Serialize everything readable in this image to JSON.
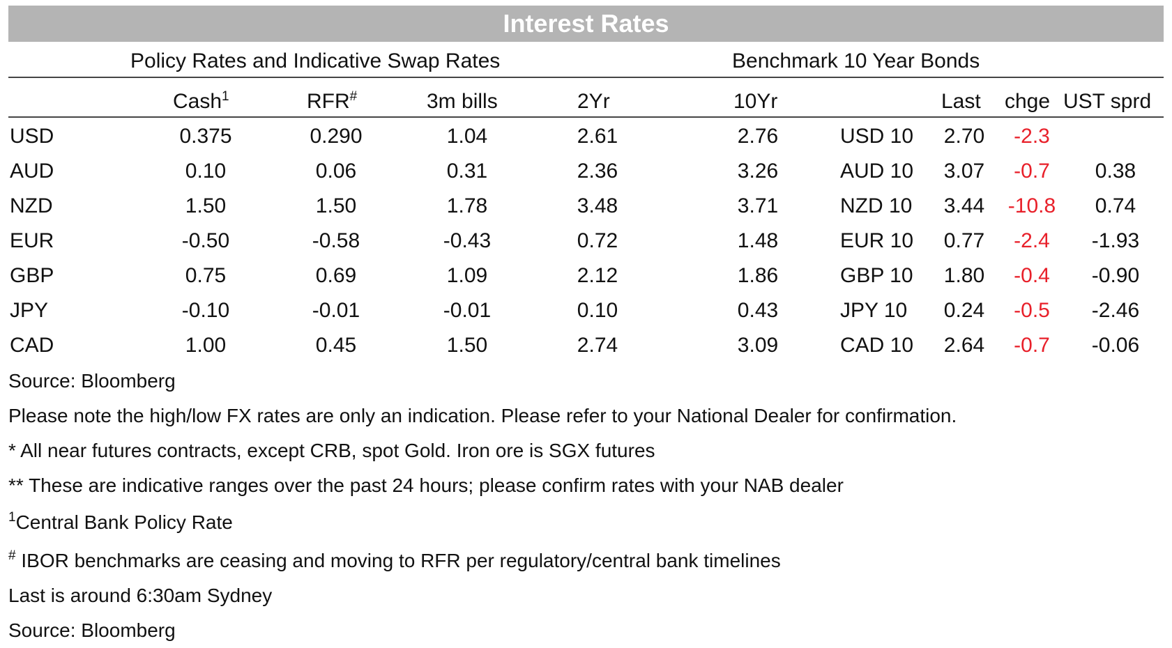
{
  "title": "Interest Rates",
  "sections": {
    "policy": "Policy Rates and Indicative Swap Rates",
    "bonds": "Benchmark 10 Year Bonds"
  },
  "headers": {
    "cash": "Cash",
    "cash_sup": "1",
    "rfr": "RFR",
    "rfr_sup": "#",
    "bills": "3m bills",
    "yr2": "2Yr",
    "yr10": "10Yr",
    "last": "Last",
    "chge": "chge",
    "ust": "UST sprd"
  },
  "rows": [
    {
      "ccy": "USD",
      "cash": "0.375",
      "rfr": "0.290",
      "bills": "1.04",
      "yr2": "2.61",
      "yr10": "2.76",
      "bond": "USD 10",
      "last": "2.70",
      "chge": "-2.3",
      "ust": ""
    },
    {
      "ccy": "AUD",
      "cash": "0.10",
      "rfr": "0.06",
      "bills": "0.31",
      "yr2": "2.36",
      "yr10": "3.26",
      "bond": "AUD 10",
      "last": "3.07",
      "chge": "-0.7",
      "ust": "0.38"
    },
    {
      "ccy": "NZD",
      "cash": "1.50",
      "rfr": "1.50",
      "bills": "1.78",
      "yr2": "3.48",
      "yr10": "3.71",
      "bond": "NZD 10",
      "last": "3.44",
      "chge": "-10.8",
      "ust": "0.74"
    },
    {
      "ccy": "EUR",
      "cash": "-0.50",
      "rfr": "-0.58",
      "bills": "-0.43",
      "yr2": "0.72",
      "yr10": "1.48",
      "bond": "EUR 10",
      "last": "0.77",
      "chge": "-2.4",
      "ust": "-1.93"
    },
    {
      "ccy": "GBP",
      "cash": "0.75",
      "rfr": "0.69",
      "bills": "1.09",
      "yr2": "2.12",
      "yr10": "1.86",
      "bond": "GBP 10",
      "last": "1.80",
      "chge": "-0.4",
      "ust": "-0.90"
    },
    {
      "ccy": "JPY",
      "cash": "-0.10",
      "rfr": "-0.01",
      "bills": "-0.01",
      "yr2": "0.10",
      "yr10": "0.43",
      "bond": "JPY 10",
      "last": "0.24",
      "chge": "-0.5",
      "ust": "-2.46"
    },
    {
      "ccy": "CAD",
      "cash": "1.00",
      "rfr": "0.45",
      "bills": "1.50",
      "yr2": "2.74",
      "yr10": "3.09",
      "bond": "CAD 10",
      "last": "2.64",
      "chge": "-0.7",
      "ust": "-0.06"
    }
  ],
  "notes": {
    "source1": "Source: Bloomberg",
    "fx": "Please note the high/low FX rates are only an indication. Please refer to your National Dealer for confirmation.",
    "futures": "* All near futures contracts, except CRB, spot Gold.  Iron ore is SGX futures",
    "ranges": "** These are indicative ranges over the past 24 hours; please confirm rates with your NAB dealer",
    "cb_sup": "1",
    "cb": "Central Bank Policy Rate",
    "ibor_sup": "#",
    "ibor": " IBOR benchmarks are ceasing and moving to RFR per regulatory/central bank timelines",
    "last": "Last is around 6:30am Sydney",
    "source2": "Source: Bloomberg"
  },
  "colors": {
    "title_bar": "#b4b4b4",
    "negative_change": "#e8202a"
  }
}
